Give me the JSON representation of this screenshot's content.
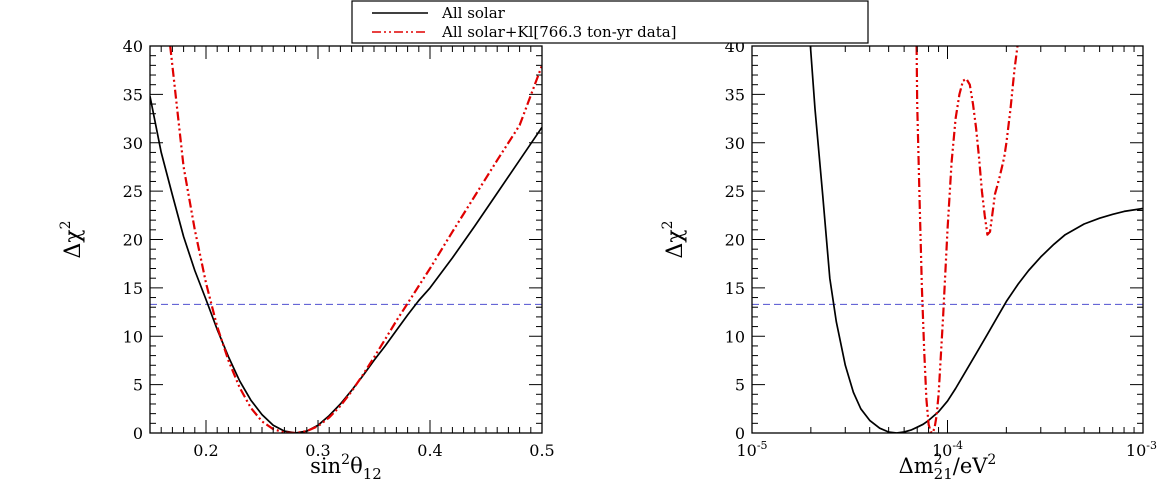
{
  "legend": {
    "entries": [
      {
        "label": "All solar",
        "color": "#000000",
        "style": "solid"
      },
      {
        "label": "All solar+Kl[766.3 ton-yr data]",
        "color": "#e00000",
        "style": "dash-dot"
      }
    ],
    "placement": "top-center"
  },
  "chart_data": [
    {
      "type": "line",
      "xscale": "linear",
      "xlim": [
        0.15,
        0.5
      ],
      "ylim": [
        0,
        40
      ],
      "xticks": [
        0.2,
        0.3,
        0.4,
        0.5
      ],
      "xtick_labels": [
        "0.2",
        "0.3",
        "0.4",
        "0.5"
      ],
      "yticks": [
        0,
        5,
        10,
        15,
        20,
        25,
        30,
        35,
        40
      ],
      "ytick_labels": [
        "0",
        "5",
        "10",
        "15",
        "20",
        "25",
        "30",
        "35",
        "40"
      ],
      "xlabel": {
        "base": "sin",
        "sup": "2",
        "mid": "θ",
        "sub": "12"
      },
      "ylabel": {
        "base": "Δχ",
        "sup": "2"
      },
      "grid": false,
      "reference_line": {
        "y": 13.3,
        "color": "#5050d0",
        "style": "dashed"
      },
      "series": [
        {
          "color": "#000000",
          "style": "solid",
          "x": [
            0.15,
            0.16,
            0.17,
            0.18,
            0.19,
            0.2,
            0.21,
            0.22,
            0.23,
            0.24,
            0.25,
            0.26,
            0.27,
            0.28,
            0.29,
            0.3,
            0.31,
            0.32,
            0.33,
            0.34,
            0.35,
            0.36,
            0.37,
            0.38,
            0.39,
            0.4,
            0.42,
            0.44,
            0.46,
            0.48,
            0.5
          ],
          "y": [
            34.8,
            29.0,
            24.6,
            20.3,
            16.8,
            13.8,
            10.7,
            7.9,
            5.4,
            3.4,
            1.9,
            0.8,
            0.2,
            0.0,
            0.2,
            0.8,
            1.8,
            3.0,
            4.4,
            5.9,
            7.5,
            9.0,
            10.6,
            12.2,
            13.7,
            15.0,
            18.1,
            21.4,
            24.8,
            28.2,
            31.6
          ]
        },
        {
          "color": "#e00000",
          "style": "dash-dot",
          "x": [
            0.168,
            0.18,
            0.19,
            0.2,
            0.21,
            0.22,
            0.23,
            0.24,
            0.25,
            0.26,
            0.27,
            0.28,
            0.29,
            0.3,
            0.31,
            0.32,
            0.33,
            0.34,
            0.35,
            0.36,
            0.37,
            0.38,
            0.39,
            0.4,
            0.42,
            0.44,
            0.46,
            0.48,
            0.5
          ],
          "y": [
            40.0,
            27.5,
            21.0,
            15.5,
            11.0,
            7.5,
            4.7,
            2.6,
            1.2,
            0.4,
            0.05,
            0.0,
            0.2,
            0.7,
            1.6,
            2.8,
            4.3,
            6.0,
            7.8,
            9.7,
            11.6,
            13.4,
            15.2,
            17.0,
            20.8,
            24.5,
            28.2,
            31.8,
            38.0
          ]
        }
      ]
    },
    {
      "type": "line",
      "xscale": "log",
      "xlim": [
        1e-05,
        0.001
      ],
      "ylim": [
        0,
        40
      ],
      "xticks": [
        1e-05,
        0.0001,
        0.001
      ],
      "xtick_labels": [
        {
          "base": "10",
          "sup": "-5"
        },
        {
          "base": "10",
          "sup": "-4"
        },
        {
          "base": "10",
          "sup": "-3"
        }
      ],
      "yticks": [
        0,
        5,
        10,
        15,
        20,
        25,
        30,
        35,
        40
      ],
      "ytick_labels": [
        "0",
        "5",
        "10",
        "15",
        "20",
        "25",
        "30",
        "35",
        "40"
      ],
      "xlabel": {
        "pre": "Δm",
        "sup": "2",
        "sub": "21",
        "post": "/eV",
        "sup2": "2"
      },
      "ylabel": {
        "base": "Δχ",
        "sup": "2"
      },
      "grid": false,
      "reference_line": {
        "y": 13.3,
        "color": "#5050d0",
        "style": "dashed"
      },
      "series": [
        {
          "color": "#000000",
          "style": "solid",
          "x": [
            1.99e-05,
            2.1e-05,
            2.3e-05,
            2.5e-05,
            2.7e-05,
            3e-05,
            3.3e-05,
            3.6e-05,
            4e-05,
            4.5e-05,
            5e-05,
            5.5e-05,
            6e-05,
            6.5e-05,
            7e-05,
            7.5e-05,
            8e-05,
            9e-05,
            0.0001,
            0.00011,
            0.00012,
            0.00014,
            0.00016,
            0.00018,
            0.0002,
            0.00023,
            0.00026,
            0.0003,
            0.00035,
            0.0004,
            0.0005,
            0.0006,
            0.0007,
            0.0008,
            0.001
          ],
          "y": [
            40.0,
            33.5,
            24.6,
            16.0,
            11.5,
            7.0,
            4.2,
            2.5,
            1.3,
            0.5,
            0.1,
            0.0,
            0.1,
            0.3,
            0.6,
            0.9,
            1.3,
            2.2,
            3.3,
            4.6,
            5.9,
            8.2,
            10.2,
            12.0,
            13.6,
            15.4,
            16.8,
            18.2,
            19.5,
            20.5,
            21.6,
            22.2,
            22.6,
            22.9,
            23.2
          ]
        },
        {
          "color": "#e00000",
          "style": "dash-dot",
          "x": [
            6.95e-05,
            7e-05,
            7.2e-05,
            7.4e-05,
            7.6e-05,
            7.8e-05,
            8e-05,
            8.2e-05,
            8.4e-05,
            8.6e-05,
            8.8e-05,
            9e-05,
            9.5e-05,
            0.0001,
            0.000105,
            0.00011,
            0.000115,
            0.00012,
            0.000125,
            0.00013,
            0.000135,
            0.00014,
            0.000145,
            0.00015,
            0.000155,
            0.00016,
            0.000165,
            0.00017,
            0.000175,
            0.00018,
            0.000185,
            0.00019,
            0.000195,
            0.0002,
            0.00021,
            0.00022,
            0.000228
          ],
          "y": [
            40.0,
            34.0,
            24.0,
            15.0,
            8.5,
            3.5,
            0.9,
            0.1,
            0.0,
            0.6,
            1.8,
            4.0,
            12.0,
            21.0,
            28.0,
            32.5,
            35.0,
            36.4,
            36.6,
            36.0,
            34.0,
            31.5,
            28.5,
            25.0,
            22.5,
            20.5,
            20.8,
            22.8,
            24.7,
            25.6,
            26.5,
            27.5,
            28.5,
            30.0,
            33.5,
            37.5,
            40.0
          ]
        }
      ]
    }
  ]
}
